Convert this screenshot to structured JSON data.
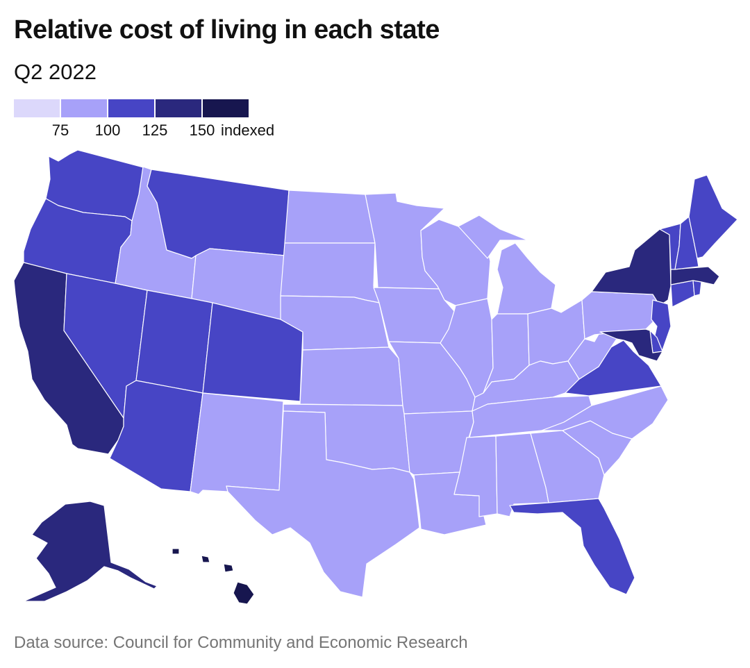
{
  "title": "Relative cost of living in each state",
  "subtitle": "Q2 2022",
  "legend": {
    "bins": [
      {
        "color": "#dcd8fb",
        "range": "< 75"
      },
      {
        "color": "#a7a1f9",
        "range": "75–100"
      },
      {
        "color": "#4745c5",
        "range": "100–125"
      },
      {
        "color": "#2a287d",
        "range": "125–150"
      },
      {
        "color": "#17164f",
        "range": "> 150"
      }
    ],
    "ticks": [
      "75",
      "100",
      "125",
      "150"
    ],
    "unit": "indexed"
  },
  "colors": {
    "low": "#a7a1f9",
    "mid": "#4745c5",
    "high": "#2a287d",
    "top": "#17164f",
    "border": "#ffffff"
  },
  "states": [
    {
      "name": "Washington",
      "bin": "mid"
    },
    {
      "name": "Oregon",
      "bin": "mid"
    },
    {
      "name": "California",
      "bin": "high"
    },
    {
      "name": "Nevada",
      "bin": "mid"
    },
    {
      "name": "Idaho",
      "bin": "low"
    },
    {
      "name": "Montana",
      "bin": "mid"
    },
    {
      "name": "Wyoming",
      "bin": "low"
    },
    {
      "name": "Utah",
      "bin": "mid"
    },
    {
      "name": "Arizona",
      "bin": "mid"
    },
    {
      "name": "Colorado",
      "bin": "mid"
    },
    {
      "name": "New Mexico",
      "bin": "low"
    },
    {
      "name": "North Dakota",
      "bin": "low"
    },
    {
      "name": "South Dakota",
      "bin": "low"
    },
    {
      "name": "Nebraska",
      "bin": "low"
    },
    {
      "name": "Kansas",
      "bin": "low"
    },
    {
      "name": "Oklahoma",
      "bin": "low"
    },
    {
      "name": "Texas",
      "bin": "low"
    },
    {
      "name": "Minnesota",
      "bin": "low"
    },
    {
      "name": "Iowa",
      "bin": "low"
    },
    {
      "name": "Missouri",
      "bin": "low"
    },
    {
      "name": "Arkansas",
      "bin": "low"
    },
    {
      "name": "Louisiana",
      "bin": "low"
    },
    {
      "name": "Wisconsin",
      "bin": "low"
    },
    {
      "name": "Illinois",
      "bin": "low"
    },
    {
      "name": "Michigan",
      "bin": "low"
    },
    {
      "name": "Indiana",
      "bin": "low"
    },
    {
      "name": "Ohio",
      "bin": "low"
    },
    {
      "name": "Kentucky",
      "bin": "low"
    },
    {
      "name": "Tennessee",
      "bin": "low"
    },
    {
      "name": "Mississippi",
      "bin": "low"
    },
    {
      "name": "Alabama",
      "bin": "low"
    },
    {
      "name": "Georgia",
      "bin": "low"
    },
    {
      "name": "Florida",
      "bin": "mid"
    },
    {
      "name": "South Carolina",
      "bin": "low"
    },
    {
      "name": "North Carolina",
      "bin": "low"
    },
    {
      "name": "Virginia",
      "bin": "mid"
    },
    {
      "name": "West Virginia",
      "bin": "low"
    },
    {
      "name": "Pennsylvania",
      "bin": "low"
    },
    {
      "name": "New York",
      "bin": "high"
    },
    {
      "name": "New Jersey",
      "bin": "mid"
    },
    {
      "name": "Delaware",
      "bin": "mid"
    },
    {
      "name": "Maryland",
      "bin": "high"
    },
    {
      "name": "Connecticut",
      "bin": "mid"
    },
    {
      "name": "Rhode Island",
      "bin": "mid"
    },
    {
      "name": "Massachusetts",
      "bin": "high"
    },
    {
      "name": "Vermont",
      "bin": "mid"
    },
    {
      "name": "New Hampshire",
      "bin": "mid"
    },
    {
      "name": "Maine",
      "bin": "mid"
    },
    {
      "name": "Alaska",
      "bin": "high"
    },
    {
      "name": "Hawaii",
      "bin": "top"
    }
  ],
  "source": "Data source: Council for Community and Economic Research"
}
